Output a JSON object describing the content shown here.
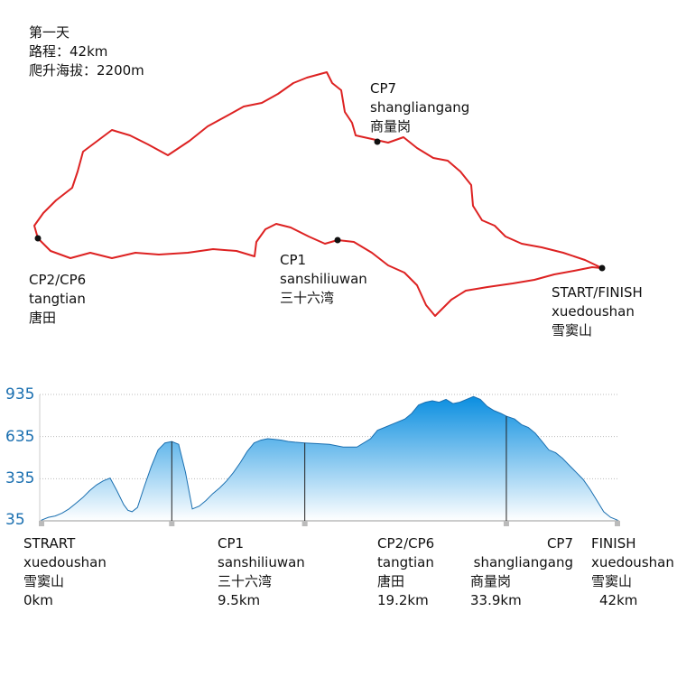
{
  "info": {
    "day": "第一天",
    "distance": "路程：42km",
    "climb": "爬升海拔：2200m"
  },
  "map_labels": {
    "cp7": [
      "CP7",
      "shangliangang",
      "商量岗"
    ],
    "cp2": [
      "CP2/CP6",
      "tangtian",
      "唐田"
    ],
    "cp1": [
      "CP1",
      "sanshiliuwan",
      "三十六湾"
    ],
    "start": [
      "START/FINISH",
      "xuedoushan",
      "雪窦山"
    ]
  },
  "colors": {
    "route": "#dd2222",
    "profile_top": "#0a8ee0",
    "profile_bottom": "#ffffff",
    "axis_text": "#1a6fb0"
  },
  "chart_data": {
    "type": "area",
    "x_unit": "km",
    "ylim": [
      35,
      935
    ],
    "yticks": [
      935,
      635,
      335,
      35
    ],
    "grid": true,
    "x": [
      0,
      0.5,
      1,
      1.5,
      2,
      2.5,
      3,
      3.5,
      4,
      4.5,
      5,
      5.5,
      6,
      6.3,
      6.6,
      7,
      7.5,
      8,
      8.5,
      9,
      9.5,
      10,
      10.5,
      11,
      11.5,
      12,
      12.5,
      13,
      13.5,
      14,
      14.5,
      15,
      15.5,
      16,
      16.5,
      17,
      17.5,
      18,
      18.5,
      19.2,
      20,
      21,
      22,
      23,
      24,
      24.5,
      25,
      25.5,
      26,
      26.5,
      27,
      27.5,
      28,
      28.5,
      29,
      29.5,
      30,
      30.5,
      31,
      31.5,
      32,
      32.5,
      33,
      33.5,
      33.9,
      34.5,
      35,
      35.5,
      36,
      36.5,
      37,
      37.5,
      38,
      38.5,
      39,
      39.5,
      40,
      40.5,
      41,
      41.5,
      42
    ],
    "y": [
      40,
      60,
      70,
      90,
      120,
      160,
      200,
      250,
      290,
      320,
      340,
      250,
      150,
      110,
      100,
      130,
      280,
      420,
      540,
      590,
      600,
      580,
      380,
      120,
      140,
      180,
      230,
      270,
      320,
      380,
      450,
      530,
      590,
      610,
      620,
      615,
      610,
      600,
      595,
      590,
      585,
      580,
      560,
      560,
      620,
      680,
      700,
      720,
      740,
      760,
      800,
      860,
      880,
      890,
      880,
      900,
      870,
      880,
      900,
      920,
      900,
      850,
      820,
      800,
      780,
      760,
      720,
      700,
      660,
      600,
      540,
      520,
      480,
      430,
      380,
      330,
      260,
      180,
      100,
      60,
      40
    ],
    "checkpoints": [
      {
        "km": 0,
        "lines": [
          "STRART",
          "xuedoushan",
          "雪窦山",
          "0km"
        ]
      },
      {
        "km": 9.5,
        "lines": [
          "CP1",
          "sanshiliuwan",
          "三十六湾",
          "9.5km"
        ]
      },
      {
        "km": 19.2,
        "lines": [
          "CP2/CP6",
          "tangtian",
          "唐田",
          "19.2km"
        ]
      },
      {
        "km": 33.9,
        "lines": [
          "CP7",
          "shangliangang",
          "商量岗",
          "33.9km"
        ]
      },
      {
        "km": 42,
        "lines": [
          "FINISH",
          "xuedoushan",
          "雪窦山",
          "42km"
        ]
      }
    ]
  }
}
